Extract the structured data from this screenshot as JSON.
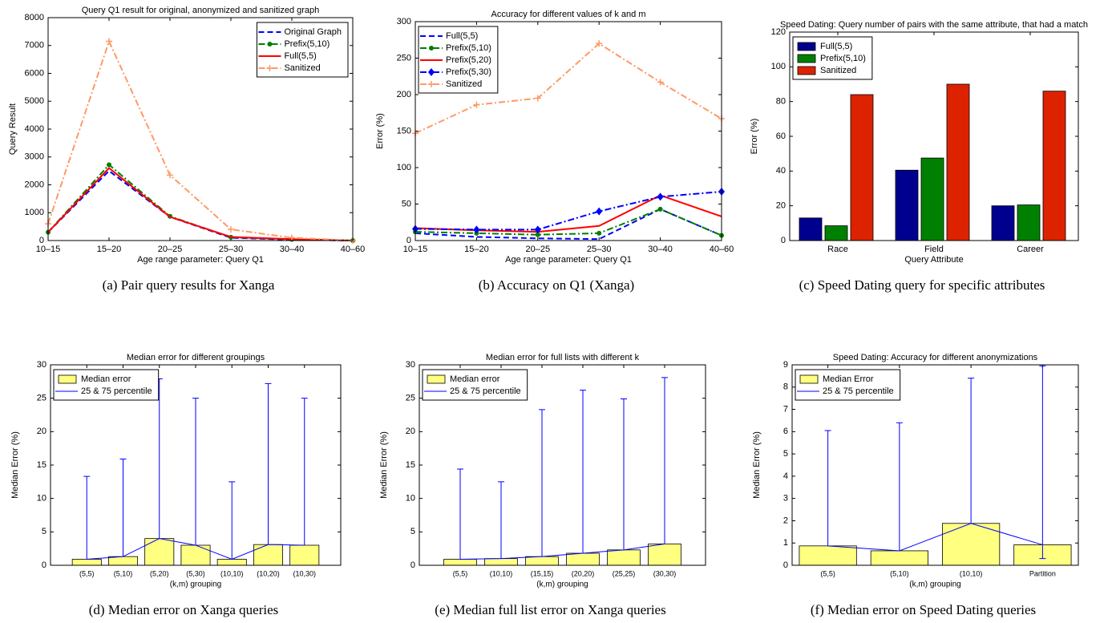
{
  "chart_data": [
    {
      "type": "line",
      "title": "Query Q1 result for original, anonymized and sanitized graph",
      "caption": "(a) Pair query results for Xanga",
      "x_label": "Age range parameter: Query Q1",
      "y_label": "Query Result",
      "categories": [
        "10–15",
        "15–20",
        "20–25",
        "25–30",
        "30–40",
        "40–60"
      ],
      "ylim": [
        0,
        8000
      ],
      "yticks": [
        0,
        1000,
        2000,
        3000,
        4000,
        5000,
        6000,
        7000,
        8000
      ],
      "legend": "upper right",
      "series": [
        {
          "name": "Original Graph",
          "color": "#0000ff",
          "dash": "dashed",
          "marker": null,
          "values": [
            300,
            2500,
            850,
            100,
            30,
            0
          ]
        },
        {
          "name": "Prefix(5,10)",
          "color": "#008000",
          "dash": "dashdot",
          "marker": "circle",
          "values": [
            300,
            2720,
            870,
            120,
            40,
            0
          ]
        },
        {
          "name": "Full(5,5)",
          "color": "#ff0000",
          "dash": "solid",
          "marker": null,
          "values": [
            300,
            2600,
            850,
            130,
            50,
            0
          ]
        },
        {
          "name": "Sanitized",
          "color": "#ff9966",
          "dash": "dashdot",
          "marker": "plus",
          "values": [
            600,
            7150,
            2350,
            400,
            100,
            0
          ]
        }
      ]
    },
    {
      "type": "line",
      "title": "Accuracy for different values of k and m",
      "caption": "(b) Accuracy on Q1 (Xanga)",
      "x_label": "Age range parameter: Query Q1",
      "y_label": "Error (%)",
      "categories": [
        "10–15",
        "15–20",
        "20–25",
        "25–30",
        "30–40",
        "40–60"
      ],
      "ylim": [
        0,
        300
      ],
      "yticks": [
        0,
        50,
        100,
        150,
        200,
        250,
        300
      ],
      "legend": "upper left",
      "series": [
        {
          "name": "Full(5,5)",
          "color": "#0000ff",
          "dash": "dashed",
          "marker": null,
          "values": [
            10,
            5,
            3,
            2,
            43,
            7
          ]
        },
        {
          "name": "Prefix(5,10)",
          "color": "#008000",
          "dash": "dashdot",
          "marker": "circle",
          "values": [
            12,
            10,
            8,
            10,
            43,
            7
          ]
        },
        {
          "name": "Prefix(5,20)",
          "color": "#ff0000",
          "dash": "solid",
          "marker": null,
          "values": [
            17,
            14,
            12,
            20,
            62,
            33
          ]
        },
        {
          "name": "Prefix(5,30)",
          "color": "#0000ff",
          "dash": "dashdot",
          "marker": "diamond",
          "values": [
            16,
            15,
            15,
            40,
            60,
            67
          ]
        },
        {
          "name": "Sanitized",
          "color": "#ff9966",
          "dash": "dashdot",
          "marker": "plus",
          "values": [
            147,
            186,
            195,
            270,
            217,
            167
          ]
        }
      ]
    },
    {
      "type": "bar",
      "title": "Speed Dating: Query number of pairs with the same attribute, that had a match",
      "caption": "(c) Speed Dating query for specific attributes",
      "x_label": "Query Attribute",
      "y_label": "Error (%)",
      "categories": [
        "Race",
        "Field",
        "Career"
      ],
      "ylim": [
        0,
        120
      ],
      "yticks": [
        0,
        20,
        40,
        60,
        80,
        100,
        120
      ],
      "legend": "upper left",
      "series": [
        {
          "name": "Full(5,5)",
          "color": "#00008f",
          "values": [
            13,
            40.5,
            20
          ]
        },
        {
          "name": "Prefix(5,10)",
          "color": "#008000",
          "values": [
            8.5,
            47.5,
            20.5
          ]
        },
        {
          "name": "Sanitized",
          "color": "#dd2200",
          "values": [
            84,
            90,
            86
          ]
        }
      ]
    },
    {
      "type": "bar_errorbar",
      "title": "Median error for different groupings",
      "caption": "(d) Median error on Xanga queries",
      "x_label": "(k,m) grouping",
      "y_label": "Median Error (%)",
      "categories": [
        "(5,5)",
        "(5,10)",
        "(5,20)",
        "(5,30)",
        "(10,10)",
        "(10,20)",
        "(10,30)"
      ],
      "ylim": [
        0,
        30
      ],
      "yticks": [
        0,
        5,
        10,
        15,
        20,
        25,
        30
      ],
      "legend": "upper left",
      "series": [
        {
          "name": "Median error",
          "color": "#ffff80",
          "values": [
            0.9,
            1.3,
            4.0,
            3.0,
            0.9,
            3.1,
            3.0
          ]
        },
        {
          "name": "25 & 75 percentile",
          "color": "#0000ff",
          "high": [
            13.3,
            15.9,
            27.9,
            25.0,
            12.5,
            27.2,
            25.0
          ]
        }
      ]
    },
    {
      "type": "bar_errorbar",
      "title": "Median error for full lists with different k",
      "caption": "(e) Median full list error on Xanga queries",
      "x_label": "(k,m) grouping",
      "y_label": "Median Error (%)",
      "categories": [
        "(5,5)",
        "(10,10)",
        "(15,15)",
        "(20,20)",
        "(25,25)",
        "(30,30)"
      ],
      "ylim": [
        0,
        30
      ],
      "yticks": [
        0,
        5,
        10,
        15,
        20,
        25,
        30
      ],
      "legend": "upper left",
      "series": [
        {
          "name": "Median error",
          "color": "#ffff80",
          "values": [
            0.9,
            1.0,
            1.3,
            1.8,
            2.3,
            3.2
          ]
        },
        {
          "name": "25 & 75 percentile",
          "color": "#0000ff",
          "high": [
            14.4,
            12.5,
            23.3,
            26.2,
            24.9,
            28.1
          ]
        }
      ]
    },
    {
      "type": "bar_errorbar",
      "title": "Speed Dating: Accuracy for different anonymizations",
      "caption": "(f) Median error on Speed Dating queries",
      "x_label": "(k,m) grouping",
      "y_label": "Median Error (%)",
      "categories": [
        "(5,5)",
        "(5,10)",
        "(10,10)",
        "Partition"
      ],
      "ylim": [
        0,
        9
      ],
      "yticks": [
        0,
        1,
        2,
        3,
        4,
        5,
        6,
        7,
        8,
        9
      ],
      "legend": "upper left",
      "series": [
        {
          "name": "Median Error",
          "color": "#ffff80",
          "values": [
            0.87,
            0.65,
            1.88,
            0.92
          ]
        },
        {
          "name": "25 & 75 percentile",
          "color": "#0000ff",
          "high": [
            6.05,
            6.4,
            8.4,
            8.95
          ],
          "low": [
            null,
            null,
            null,
            0.3
          ]
        }
      ]
    }
  ]
}
